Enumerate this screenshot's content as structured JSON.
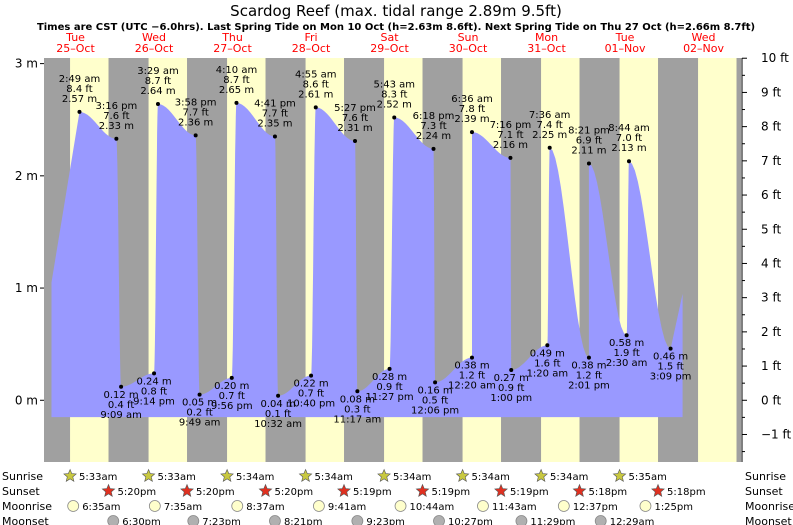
{
  "chart_data": {
    "type": "area",
    "title": "Scardog Reef (max. tidal range 2.89m 9.5ft)",
    "subtitle": "Times are CST (UTC −6.0hrs). Last Spring Tide on Mon 10 Oct (h=2.63m 8.6ft). Next Spring Tide on Thu 27 Oct (h=2.66m 8.7ft)",
    "colors": {
      "tide": "#9999ff",
      "day": "#ffffcc",
      "night": "#a0a0a0",
      "date": "#ff0000",
      "sun": "#c8c840",
      "sunset": "#e03020",
      "moonrise": "#ffffcc",
      "moonset": "#b0b0b0"
    },
    "ylim_m": [
      -0.55,
      3.05
    ],
    "yticks_m": [
      {
        "value": 3,
        "label": "3 m"
      },
      {
        "value": 2,
        "label": "2 m"
      },
      {
        "value": 1,
        "label": "1 m"
      },
      {
        "value": 0,
        "label": "0 m"
      }
    ],
    "yticks_ft": [
      {
        "value": 10,
        "label": "10 ft"
      },
      {
        "value": 9,
        "label": "9 ft"
      },
      {
        "value": 8,
        "label": "8 ft"
      },
      {
        "value": 7,
        "label": "7 ft"
      },
      {
        "value": 6,
        "label": "6 ft"
      },
      {
        "value": 5,
        "label": "5 ft"
      },
      {
        "value": 4,
        "label": "4 ft"
      },
      {
        "value": 3,
        "label": "3 ft"
      },
      {
        "value": 2,
        "label": "2 ft"
      },
      {
        "value": 1,
        "label": "1 ft"
      },
      {
        "value": 0,
        "label": "0 ft"
      },
      {
        "value": -1,
        "label": "−1 ft"
      }
    ],
    "x_range_days": [
      0,
      8.8
    ],
    "days": [
      {
        "day": "Tue",
        "date": "25–Oct",
        "x": 0.0
      },
      {
        "day": "Wed",
        "date": "26–Oct",
        "x": 1.0
      },
      {
        "day": "Thu",
        "date": "27–Oct",
        "x": 2.0
      },
      {
        "day": "Fri",
        "date": "28–Oct",
        "x": 3.0
      },
      {
        "day": "Sat",
        "date": "29–Oct",
        "x": 4.0
      },
      {
        "day": "Sun",
        "date": "30–Oct",
        "x": 5.0
      },
      {
        "day": "Mon",
        "date": "31–Oct",
        "x": 6.0
      },
      {
        "day": "Tue",
        "date": "01–Nov",
        "x": 7.0
      },
      {
        "day": "Wed",
        "date": "02–Nov",
        "x": 8.0
      }
    ],
    "daylight": [
      [
        0.23,
        0.72
      ],
      [
        1.23,
        1.72
      ],
      [
        2.23,
        2.72
      ],
      [
        3.23,
        3.72
      ],
      [
        4.23,
        4.72
      ],
      [
        5.23,
        5.72
      ],
      [
        6.23,
        6.72
      ],
      [
        7.23,
        7.72
      ],
      [
        8.23,
        8.72
      ]
    ],
    "tides": [
      {
        "type": "high",
        "x": 0.35,
        "time": "2:49 am",
        "ft": "8.4 ft",
        "m": 2.57,
        "m_label": "2.57 m"
      },
      {
        "type": "low",
        "x": 0.88,
        "time": "9:09 am",
        "ft": "0.4 ft",
        "m": 0.12,
        "m_label": "0.12 m"
      },
      {
        "type": "high",
        "x": 0.82,
        "time": "3:16 pm",
        "ft": "7.6 ft",
        "m": 2.33,
        "m_label": "2.33 m"
      },
      {
        "type": "low",
        "x": 1.3,
        "time": "9:14 pm",
        "ft": "0.8 ft",
        "m": 0.24,
        "m_label": "0.24 m"
      },
      {
        "type": "high",
        "x": 1.35,
        "time": "3:29 am",
        "ft": "8.7 ft",
        "m": 2.64,
        "m_label": "2.64 m"
      },
      {
        "type": "low",
        "x": 1.88,
        "time": "9:49 am",
        "ft": "0.2 ft",
        "m": 0.05,
        "m_label": "0.05 m"
      },
      {
        "type": "high",
        "x": 1.83,
        "time": "3:58 pm",
        "ft": "7.7 ft",
        "m": 2.36,
        "m_label": "2.36 m"
      },
      {
        "type": "low",
        "x": 2.29,
        "time": "9:56 pm",
        "ft": "0.7 ft",
        "m": 0.2,
        "m_label": "0.20 m"
      },
      {
        "type": "high",
        "x": 2.35,
        "time": "4:10 am",
        "ft": "8.7 ft",
        "m": 2.65,
        "m_label": "2.65 m"
      },
      {
        "type": "low",
        "x": 2.88,
        "time": "10:32 am",
        "ft": "0.1 ft",
        "m": 0.04,
        "m_label": "0.04 m"
      },
      {
        "type": "high",
        "x": 2.84,
        "time": "4:41 pm",
        "ft": "7.7 ft",
        "m": 2.35,
        "m_label": "2.35 m"
      },
      {
        "type": "low",
        "x": 3.3,
        "time": "10:40 pm",
        "ft": "0.7 ft",
        "m": 0.22,
        "m_label": "0.22 m"
      },
      {
        "type": "high",
        "x": 3.36,
        "time": "4:55 am",
        "ft": "8.6 ft",
        "m": 2.61,
        "m_label": "2.61 m"
      },
      {
        "type": "low",
        "x": 3.89,
        "time": "11:17 am",
        "ft": "0.3 ft",
        "m": 0.08,
        "m_label": "0.08 m"
      },
      {
        "type": "high",
        "x": 3.86,
        "time": "5:27 pm",
        "ft": "7.6 ft",
        "m": 2.31,
        "m_label": "2.31 m"
      },
      {
        "type": "low",
        "x": 4.3,
        "time": "11:27 pm",
        "ft": "0.9 ft",
        "m": 0.28,
        "m_label": "0.28 m"
      },
      {
        "type": "high",
        "x": 4.36,
        "time": "5:43 am",
        "ft": "8.3 ft",
        "m": 2.52,
        "m_label": "2.52 m"
      },
      {
        "type": "low",
        "x": 4.88,
        "time": "12:06 pm",
        "ft": "0.5 ft",
        "m": 0.16,
        "m_label": "0.16 m"
      },
      {
        "type": "high",
        "x": 4.86,
        "time": "6:18 pm",
        "ft": "7.3 ft",
        "m": 2.24,
        "m_label": "2.24 m"
      },
      {
        "type": "low",
        "x": 5.35,
        "time": "12:20 am",
        "ft": "1.2 ft",
        "m": 0.38,
        "m_label": "0.38 m"
      },
      {
        "type": "high",
        "x": 5.35,
        "time": "6:36 am",
        "ft": "7.8 ft",
        "m": 2.39,
        "m_label": "2.39 m"
      },
      {
        "type": "low",
        "x": 5.85,
        "time": "1:00 pm",
        "ft": "0.9 ft",
        "m": 0.27,
        "m_label": "0.27 m"
      },
      {
        "type": "high",
        "x": 5.84,
        "time": "7:16 pm",
        "ft": "7.1 ft",
        "m": 2.16,
        "m_label": "2.16 m"
      },
      {
        "type": "low",
        "x": 6.31,
        "time": "1:20 am",
        "ft": "1.6 ft",
        "m": 0.49,
        "m_label": "0.49 m"
      },
      {
        "type": "high",
        "x": 6.34,
        "time": "7:36 am",
        "ft": "7.4 ft",
        "m": 2.25,
        "m_label": "2.25 m"
      },
      {
        "type": "low",
        "x": 6.84,
        "time": "2:01 pm",
        "ft": "1.2 ft",
        "m": 0.38,
        "m_label": "0.38 m"
      },
      {
        "type": "high",
        "x": 6.84,
        "time": "8:21 pm",
        "ft": "6.9 ft",
        "m": 2.11,
        "m_label": "2.11 m"
      },
      {
        "type": "low",
        "x": 7.32,
        "time": "2:30 am",
        "ft": "1.9 ft",
        "m": 0.58,
        "m_label": "0.58 m"
      },
      {
        "type": "high",
        "x": 7.35,
        "time": "8:44 am",
        "ft": "7.0 ft",
        "m": 2.13,
        "m_label": "2.13 m"
      },
      {
        "type": "low",
        "x": 7.88,
        "time": "3:09 pm",
        "ft": "1.5 ft",
        "m": 0.46,
        "m_label": "0.46 m"
      }
    ],
    "rows": [
      {
        "label": "Sunrise",
        "kind": "sunrise",
        "events": [
          {
            "x": 0.23,
            "time": "5:33am"
          },
          {
            "x": 1.23,
            "time": "5:33am"
          },
          {
            "x": 2.23,
            "time": "5:34am"
          },
          {
            "x": 3.23,
            "time": "5:34am"
          },
          {
            "x": 4.23,
            "time": "5:34am"
          },
          {
            "x": 5.23,
            "time": "5:34am"
          },
          {
            "x": 6.23,
            "time": "5:34am"
          },
          {
            "x": 7.23,
            "time": "5:35am"
          }
        ]
      },
      {
        "label": "Sunset",
        "kind": "sunset",
        "events": [
          {
            "x": 0.72,
            "time": "5:20pm"
          },
          {
            "x": 1.72,
            "time": "5:20pm"
          },
          {
            "x": 2.72,
            "time": "5:20pm"
          },
          {
            "x": 3.72,
            "time": "5:19pm"
          },
          {
            "x": 4.72,
            "time": "5:19pm"
          },
          {
            "x": 5.72,
            "time": "5:19pm"
          },
          {
            "x": 6.72,
            "time": "5:18pm"
          },
          {
            "x": 7.72,
            "time": "5:18pm"
          }
        ]
      },
      {
        "label": "Moonrise",
        "kind": "moonrise",
        "events": [
          {
            "x": 0.27,
            "time": "6:35am"
          },
          {
            "x": 1.31,
            "time": "7:35am"
          },
          {
            "x": 2.36,
            "time": "8:37am"
          },
          {
            "x": 3.4,
            "time": "9:41am"
          },
          {
            "x": 4.44,
            "time": "10:44am"
          },
          {
            "x": 5.49,
            "time": "11:43am"
          },
          {
            "x": 6.52,
            "time": "12:37pm"
          },
          {
            "x": 7.56,
            "time": "1:25pm"
          }
        ]
      },
      {
        "label": "Moonset",
        "kind": "moonset",
        "events": [
          {
            "x": 0.78,
            "time": "6:30pm"
          },
          {
            "x": 1.8,
            "time": "7:23pm"
          },
          {
            "x": 2.84,
            "time": "8:21pm"
          },
          {
            "x": 3.89,
            "time": "9:23pm"
          },
          {
            "x": 4.93,
            "time": "10:27pm"
          },
          {
            "x": 5.98,
            "time": "11:29pm"
          },
          {
            "x": 6.99,
            "time": "12:29am"
          }
        ]
      }
    ]
  }
}
